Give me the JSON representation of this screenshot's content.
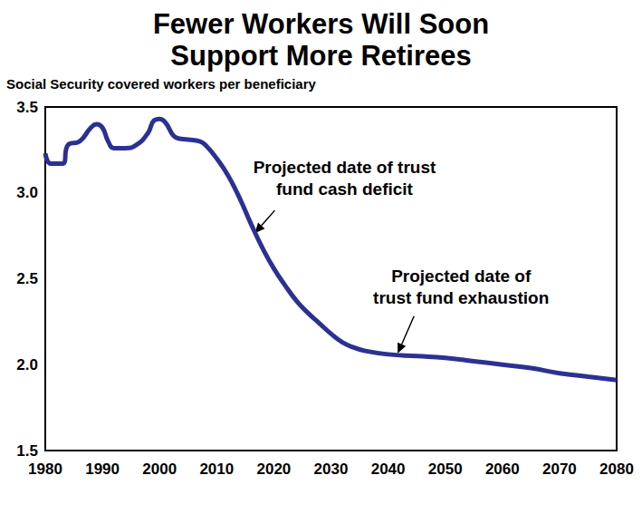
{
  "chart_data": {
    "type": "line",
    "title": "Fewer Workers Will Soon\nSupport More Retirees",
    "y_label": "Social Security covered workers per beneficiary",
    "x": [
      1980,
      1981,
      1983,
      1984,
      1986,
      1988,
      1989,
      1990,
      1991,
      1992,
      1994,
      1996,
      1998,
      1999,
      2000,
      2001,
      2003,
      2005,
      2007,
      2008,
      2010,
      2012,
      2014,
      2016,
      2018,
      2020,
      2022,
      2024,
      2026,
      2028,
      2030,
      2032,
      2034,
      2036,
      2040,
      2045,
      2050,
      2055,
      2060,
      2065,
      2070,
      2075,
      2080
    ],
    "values": [
      3.23,
      3.17,
      3.17,
      3.28,
      3.3,
      3.38,
      3.4,
      3.38,
      3.3,
      3.26,
      3.26,
      3.28,
      3.35,
      3.42,
      3.43,
      3.41,
      3.32,
      3.31,
      3.3,
      3.28,
      3.2,
      3.1,
      2.97,
      2.82,
      2.68,
      2.56,
      2.46,
      2.37,
      2.3,
      2.24,
      2.18,
      2.13,
      2.1,
      2.08,
      2.06,
      2.05,
      2.04,
      2.02,
      2.0,
      1.98,
      1.95,
      1.93,
      1.91
    ],
    "color": "#2b3192",
    "xlim": [
      1980,
      2080
    ],
    "xticks": [
      1980,
      1990,
      2000,
      2010,
      2020,
      2030,
      2040,
      2050,
      2060,
      2070,
      2080
    ],
    "ylim": [
      1.5,
      3.5
    ],
    "yticks": [
      1.5,
      {
        "value": 2,
        "label": "2.0"
      },
      2.5,
      {
        "value": 3,
        "label": "3.0"
      },
      3.5
    ],
    "grid": false,
    "annotations": [
      {
        "text": "Projected date of trust\nfund cash deficit",
        "x": 2017,
        "y": 2.75
      },
      {
        "text": "Projected date of\ntrust fund exhaustion",
        "x": 2042,
        "y": 2.05
      }
    ]
  }
}
